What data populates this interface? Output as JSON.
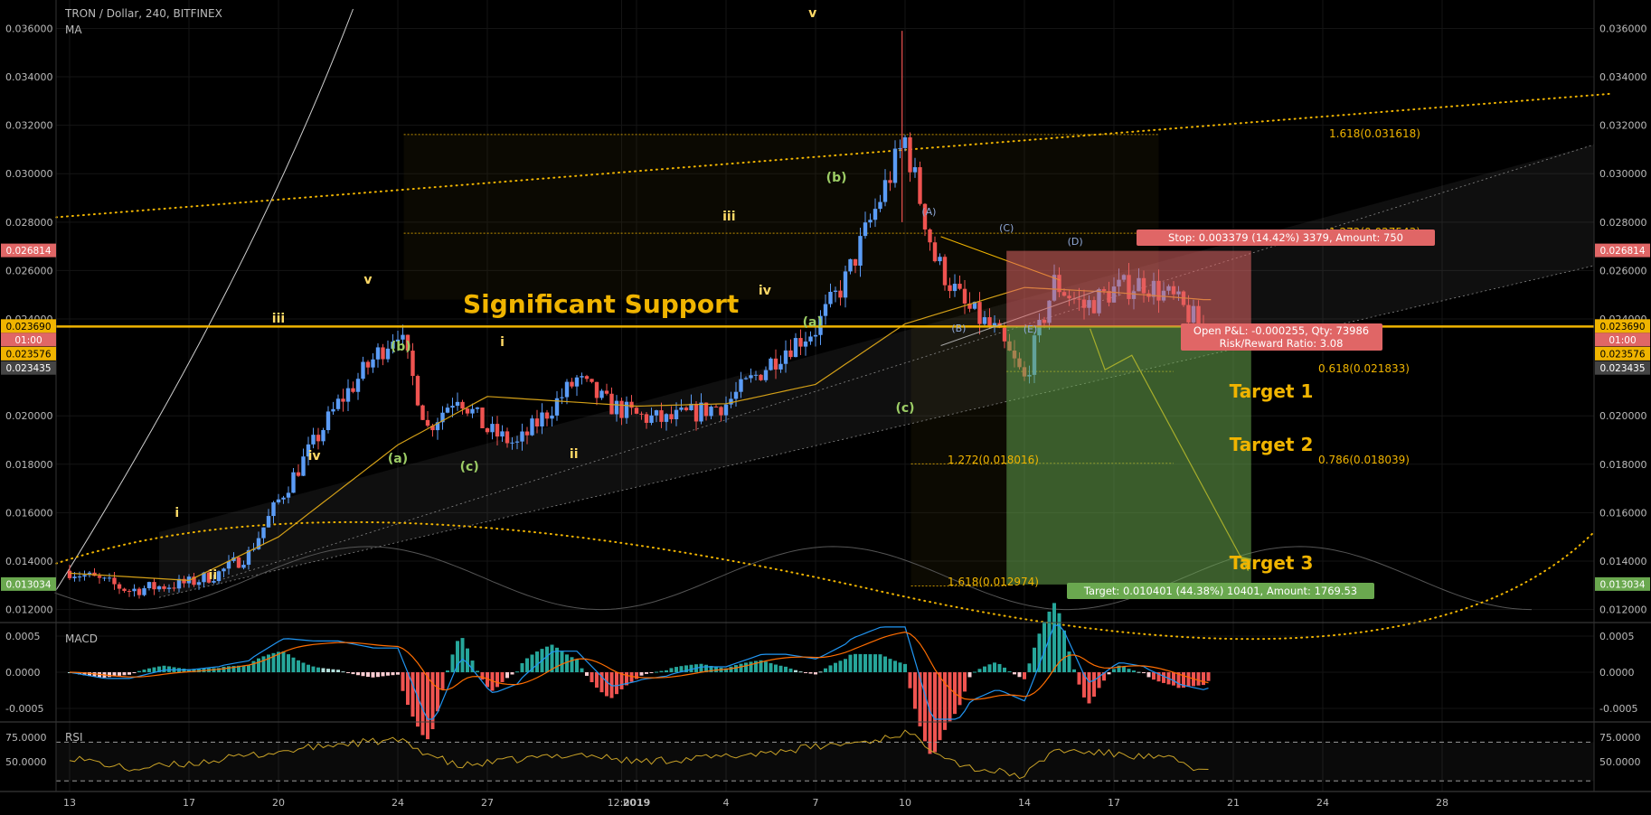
{
  "header": {
    "symbol": "TRON / Dollar, 240, BITFINEX",
    "indicator": "MA"
  },
  "colors": {
    "background": "#000000",
    "grid": "#141414",
    "bull": "#5b9cf6",
    "bear": "#ef5350",
    "gold": "#f0b400",
    "wave_light": "#ffd966",
    "wave_green": "#9ccc65",
    "wave_blue": "#8fa8d8",
    "macd_line": "#2196f3",
    "signal_line": "#ff6d00",
    "rsi_line": "#c9a227",
    "stop_zone": "#e06666",
    "target_zone": "#6aa84f"
  },
  "price_axis": {
    "ticks": [
      "0.036000",
      "0.034000",
      "0.032000",
      "0.030000",
      "0.028000",
      "0.026000",
      "0.024000",
      "0.020000",
      "0.018000",
      "0.016000",
      "0.014000",
      "0.012000"
    ],
    "tick_values": [
      0.036,
      0.034,
      0.032,
      0.03,
      0.028,
      0.026,
      0.024,
      0.02,
      0.018,
      0.016,
      0.014,
      0.012
    ],
    "badges_left": [
      {
        "label": "0.026814",
        "value": 0.026814,
        "color": "#e06666"
      },
      {
        "label": "0.023690",
        "value": 0.02369,
        "color": "#f0b400"
      },
      {
        "label": "01:00",
        "value": 0.02313,
        "color": "#e06666"
      },
      {
        "label": "0.023576",
        "value": 0.02255,
        "color": "#f0b400"
      },
      {
        "label": "0.023435",
        "value": 0.02196,
        "color": "#444444"
      },
      {
        "label": "0.013034",
        "value": 0.013034,
        "color": "#6aa84f"
      }
    ],
    "badges_right": [
      {
        "label": "0.026814",
        "value": 0.026814,
        "color": "#e06666"
      },
      {
        "label": "0.023690",
        "value": 0.02369,
        "color": "#f0b400"
      },
      {
        "label": "01:00",
        "value": 0.02313,
        "color": "#e06666"
      },
      {
        "label": "0.023576",
        "value": 0.02255,
        "color": "#f0b400"
      },
      {
        "label": "0.023435",
        "value": 0.02196,
        "color": "#444444"
      },
      {
        "label": "0.013034",
        "value": 0.013034,
        "color": "#6aa84f"
      }
    ]
  },
  "time_axis": {
    "labels": [
      "13",
      "17",
      "20",
      "24",
      "27",
      "12:00",
      "2019",
      "4",
      "7",
      "10",
      "14",
      "17",
      "21",
      "24",
      "28"
    ],
    "label_dates": [
      "2018-12-13",
      "2018-12-17",
      "2018-12-20",
      "2018-12-24",
      "2018-12-27",
      "2018-12-31 12:00",
      "2019-01-01",
      "2019-01-04",
      "2019-01-07",
      "2019-01-10",
      "2019-01-14",
      "2019-01-17",
      "2019-01-21",
      "2019-01-24",
      "2019-01-28"
    ]
  },
  "annotations": {
    "support_label": "Significant Support",
    "support_level": 0.02369,
    "targets": [
      "Target 1",
      "Target 2",
      "Target 3"
    ],
    "stop_box": "Stop: 0.003379 (14.42%) 3379, Amount: 750",
    "pnl_box": "Open P&L: -0.000255, Qty: 73986",
    "rr_box": "Risk/Reward Ratio: 3.08",
    "target_box": "Target: 0.010401 (44.38%) 10401, Amount: 1769.53",
    "fib_levels": [
      {
        "label": "1.618(0.031618)",
        "value": 0.031618
      },
      {
        "label": "1.272(0.027543)",
        "value": 0.027543
      },
      {
        "label": "0.618(0.021833)",
        "value": 0.021833
      },
      {
        "label": "1.272(0.018016)",
        "value": 0.018016
      },
      {
        "label": "0.786(0.018039)",
        "value": 0.018039
      },
      {
        "label": "1.618(0.012974)",
        "value": 0.012974
      }
    ],
    "waves_light": [
      "i",
      "ii",
      "iii",
      "iv",
      "v",
      "i",
      "ii",
      "iii",
      "iv",
      "v"
    ],
    "waves_green": [
      "(a)",
      "(b)",
      "(c)",
      "(a)",
      "(b)",
      "(c)"
    ],
    "waves_blue": [
      "(A)",
      "(B)",
      "(C)",
      "(D)",
      "(E)"
    ]
  },
  "macd": {
    "label": "MACD",
    "ticks": [
      "0.0005",
      "0.0000",
      "-0.0005"
    ],
    "tick_values": [
      0.0005,
      0.0,
      -0.0005
    ]
  },
  "rsi": {
    "label": "RSI",
    "ticks": [
      "75.0000",
      "50.0000"
    ],
    "tick_values": [
      75,
      50
    ],
    "bands": [
      70,
      30
    ]
  },
  "chart_data": {
    "type": "candlestick",
    "title": "TRON / Dollar, 240, BITFINEX",
    "x_range": [
      "2018-12-13",
      "2019-01-31"
    ],
    "y_range": [
      0.0115,
      0.0368
    ],
    "grid": true,
    "anchors": {
      "dates": [
        "2018-12-13",
        "2018-12-15",
        "2018-12-17",
        "2018-12-18",
        "2018-12-19",
        "2018-12-20",
        "2018-12-22",
        "2018-12-24",
        "2018-12-25",
        "2018-12-26",
        "2018-12-27",
        "2018-12-28",
        "2018-12-30",
        "2018-12-31",
        "2019-01-01",
        "2019-01-02",
        "2019-01-04",
        "2019-01-06",
        "2019-01-07",
        "2019-01-08",
        "2019-01-09",
        "2019-01-10",
        "2019-01-11",
        "2019-01-12",
        "2019-01-13",
        "2019-01-14",
        "2019-01-15",
        "2019-01-16",
        "2019-01-17",
        "2019-01-18",
        "2019-01-19",
        "2019-01-20"
      ],
      "close": [
        0.0136,
        0.0128,
        0.0131,
        0.0135,
        0.0143,
        0.0165,
        0.0205,
        0.0236,
        0.0195,
        0.0209,
        0.0194,
        0.0188,
        0.0215,
        0.0205,
        0.02,
        0.0198,
        0.0205,
        0.0228,
        0.0236,
        0.0256,
        0.0285,
        0.0314,
        0.0265,
        0.0245,
        0.0235,
        0.0215,
        0.0255,
        0.0245,
        0.0252,
        0.0255,
        0.0248,
        0.0236
      ]
    },
    "ma": {
      "dates": [
        "2018-12-13",
        "2018-12-17",
        "2018-12-20",
        "2018-12-24",
        "2018-12-27",
        "2019-01-01",
        "2019-01-04",
        "2019-01-07",
        "2019-01-10",
        "2019-01-14",
        "2019-01-17",
        "2019-01-20"
      ],
      "values": [
        0.0135,
        0.0132,
        0.015,
        0.0188,
        0.0208,
        0.0204,
        0.0205,
        0.0213,
        0.0238,
        0.0253,
        0.0251,
        0.0248
      ]
    },
    "rsi_anchors": {
      "dates": [
        "2018-12-13",
        "2018-12-15",
        "2018-12-17",
        "2018-12-20",
        "2018-12-22",
        "2018-12-24",
        "2018-12-26",
        "2018-12-28",
        "2018-12-30",
        "2019-01-01",
        "2019-01-04",
        "2019-01-07",
        "2019-01-09",
        "2019-01-10",
        "2019-01-12",
        "2019-01-14",
        "2019-01-15",
        "2019-01-17",
        "2019-01-19",
        "2019-01-20"
      ],
      "values": [
        55,
        42,
        48,
        60,
        68,
        72,
        45,
        52,
        58,
        50,
        55,
        65,
        72,
        80,
        45,
        35,
        62,
        58,
        52,
        40
      ]
    }
  }
}
